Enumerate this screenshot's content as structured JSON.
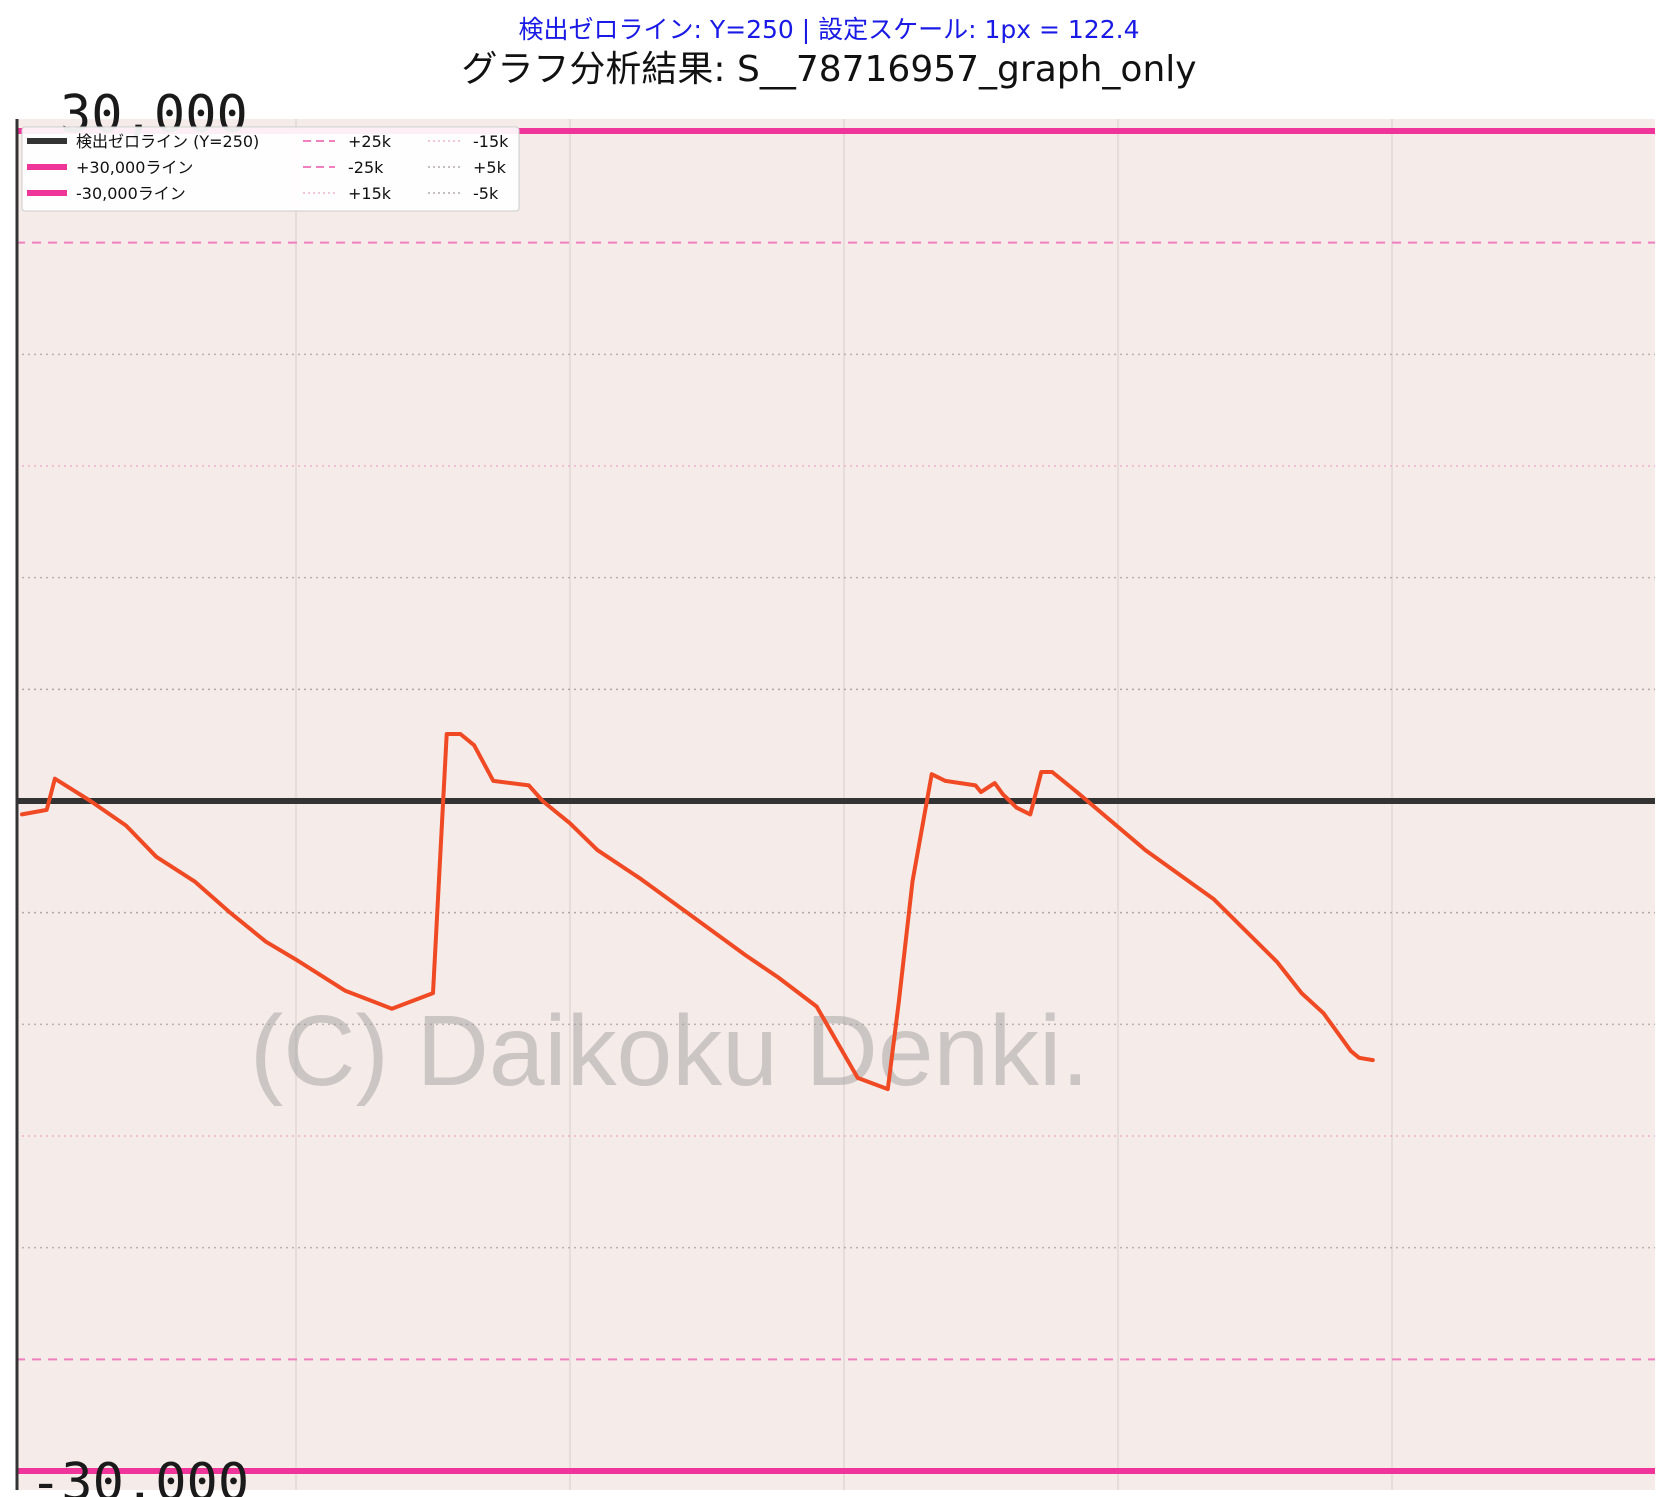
{
  "header": {
    "subtitle": "検出ゼロライン: Y=250 | 設定スケール: 1px = 122.4",
    "title": "グラフ分析結果: S__78716957_graph_only"
  },
  "watermark": "(C) Daikoku Denki.",
  "axis_fragments": {
    "top": "30,000",
    "bottom": "-30,000"
  },
  "colors": {
    "plot_background": "#f5ebe8",
    "zero_line": "#222222",
    "limit_lines": "#f0359a",
    "dashed_lines": "#f07fbf",
    "dotted_pink": "#f0b0cc",
    "dotted_grey": "#b4a7a7",
    "series": "#f04a24"
  },
  "legend": {
    "items": [
      {
        "label": "検出ゼロライン (Y=250)",
        "style": "solid-thick",
        "color": "#333333"
      },
      {
        "label": "+30,000ライン",
        "style": "solid-thick",
        "color": "#f0359a"
      },
      {
        "label": "-30,000ライン",
        "style": "solid-thick",
        "color": "#f0359a"
      },
      {
        "label": "+25k",
        "style": "dashed",
        "color": "#f07fbf"
      },
      {
        "label": "-25k",
        "style": "dashed",
        "color": "#f07fbf"
      },
      {
        "label": "+15k",
        "style": "dotted",
        "color": "#f0b0cc"
      },
      {
        "label": "-15k",
        "style": "dotted",
        "color": "#f0b0cc"
      },
      {
        "label": "+5k",
        "style": "dotted",
        "color": "#b4a7a7"
      },
      {
        "label": "-5k",
        "style": "dotted",
        "color": "#b4a7a7"
      }
    ]
  },
  "chart_data": {
    "type": "line",
    "title": "グラフ分析結果: S__78716957_graph_only",
    "subtitle": "検出ゼロライン: Y=250 | 設定スケール: 1px = 122.4",
    "ylim": [
      -30000,
      30000
    ],
    "xlim": [
      0,
      6
    ],
    "grid": true,
    "legend_position": "top-left",
    "reference_lines": [
      {
        "label": "検出ゼロライン (Y=250)",
        "y": 0,
        "style": "solid-thick"
      },
      {
        "label": "+30,000ライン",
        "y": 30000,
        "style": "solid-thick"
      },
      {
        "label": "-30,000ライン",
        "y": -30000,
        "style": "solid-thick"
      },
      {
        "label": "+25k",
        "y": 25000,
        "style": "dashed"
      },
      {
        "label": "-25k",
        "y": -25000,
        "style": "dashed"
      },
      {
        "label": "+15k",
        "y": 15000,
        "style": "dotted"
      },
      {
        "label": "-15k",
        "y": -15000,
        "style": "dotted"
      },
      {
        "label": "+5k",
        "y": 5000,
        "style": "dotted"
      },
      {
        "label": "-5k",
        "y": -5000,
        "style": "dotted"
      }
    ],
    "extra_dotted_levels": [
      20000,
      10000,
      -10000,
      -20000
    ],
    "series": [
      {
        "x": [
          0.0,
          0.09,
          0.12,
          0.25,
          0.38,
          0.49,
          0.63,
          0.76,
          0.89,
          1.0,
          1.18,
          1.35,
          1.5,
          1.55,
          1.6,
          1.65,
          1.72,
          1.85,
          1.9,
          2.0,
          2.1,
          2.26,
          2.45,
          2.64,
          2.76,
          2.9,
          3.05,
          3.16,
          3.2,
          3.25,
          3.32,
          3.37,
          3.48,
          3.5,
          3.55,
          3.58,
          3.63,
          3.68,
          3.72,
          3.76,
          3.85,
          4.1,
          4.35,
          4.58,
          4.67,
          4.75,
          4.85,
          4.88,
          4.93
        ],
        "y": [
          -600,
          -400,
          1000,
          0,
          -1100,
          -2500,
          -3600,
          -5000,
          -6300,
          -7100,
          -8500,
          -9300,
          -8600,
          3000,
          3000,
          2500,
          900,
          700,
          0,
          -1000,
          -2200,
          -3500,
          -5200,
          -6900,
          -7900,
          -9200,
          -12400,
          -12900,
          -9000,
          -3600,
          1200,
          900,
          700,
          400,
          800,
          300,
          -300,
          -600,
          1300,
          1300,
          400,
          -2200,
          -4400,
          -7200,
          -8600,
          -9500,
          -11200,
          -11500,
          -11600
        ]
      }
    ]
  }
}
